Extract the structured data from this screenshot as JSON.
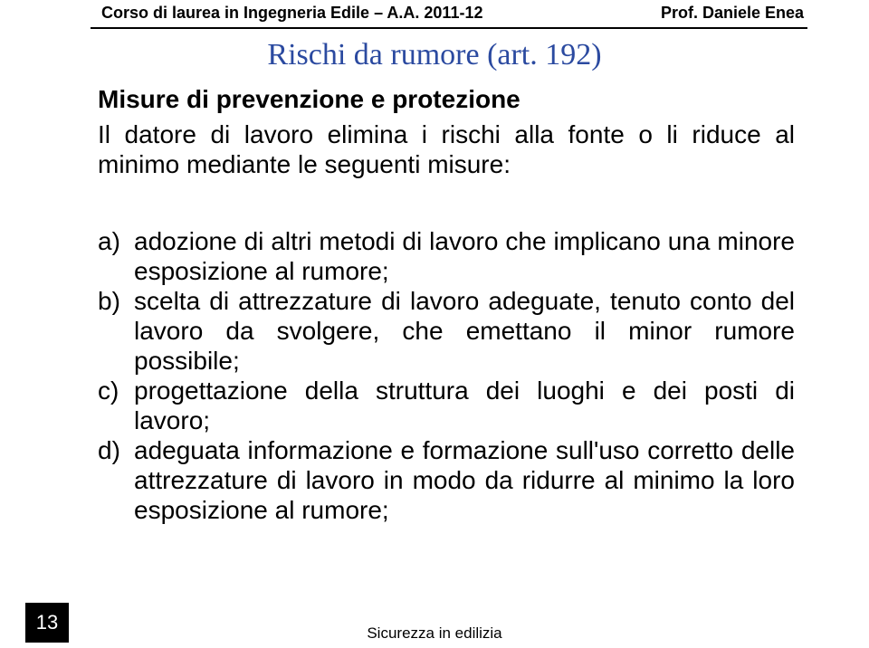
{
  "header": {
    "left": "Corso di laurea in Ingegneria Edile – A.A. 2011-12",
    "right": "Prof. Daniele Enea"
  },
  "title": "Rischi da rumore (art. 192)",
  "subTitle": "Misure di prevenzione e protezione",
  "intro": "Il datore di lavoro elimina i rischi alla fonte o li riduce al minimo mediante le seguenti misure:",
  "items": [
    {
      "marker": "a)",
      "text": "adozione di altri metodi di lavoro che implicano una minore esposizione al rumore;"
    },
    {
      "marker": "b)",
      "text": "scelta di attrezzature di lavoro adeguate, tenuto conto del lavoro da svolgere, che emettano il minor rumore possibile;"
    },
    {
      "marker": "c)",
      "text": "progettazione della struttura dei luoghi e dei posti di lavoro;"
    },
    {
      "marker": "d)",
      "text": "adeguata informazione e formazione sull'uso corretto delle attrezzature di lavoro in modo da ridurre al minimo la loro esposizione al rumore;"
    }
  ],
  "footer": "Sicurezza in edilizia",
  "pageNumber": "13",
  "colors": {
    "titleColor": "#2b4aa0",
    "background": "#ffffff",
    "line": "#000000"
  }
}
